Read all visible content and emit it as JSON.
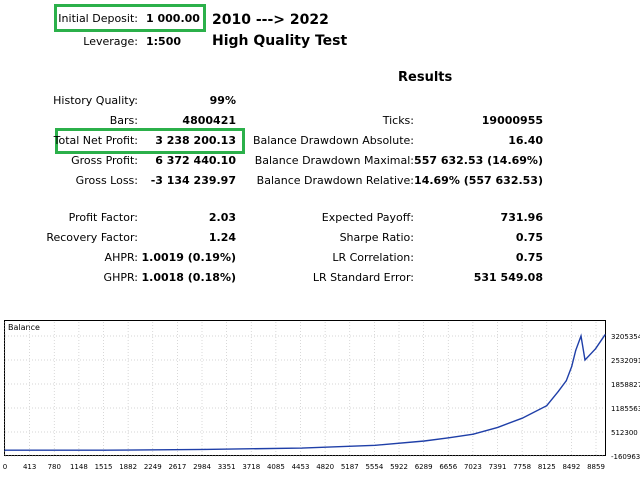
{
  "header": {
    "initial_deposit_label": "Initial Deposit:",
    "initial_deposit_value": "1 000.00",
    "leverage_label": "Leverage:",
    "leverage_value": "1:500",
    "period": "2010 ---> 2022",
    "subtitle": "High Quality Test"
  },
  "results_title": "Results",
  "left_stats": [
    {
      "label": "History Quality:",
      "value": "99%"
    },
    {
      "label": "Bars:",
      "value": "4800421"
    },
    {
      "label": "Total Net Profit:",
      "value": "3 238 200.13"
    },
    {
      "label": "Gross Profit:",
      "value": "6 372 440.10"
    },
    {
      "label": "Gross Loss:",
      "value": "-3 134 239.97"
    },
    {
      "label": "Profit Factor:",
      "value": "2.03"
    },
    {
      "label": "Recovery Factor:",
      "value": "1.24"
    },
    {
      "label": "AHPR:",
      "value": "1.0019 (0.19%)"
    },
    {
      "label": "GHPR:",
      "value": "1.0018 (0.18%)"
    }
  ],
  "right_stats": [
    {
      "label": "Ticks:",
      "value": "19000955"
    },
    {
      "label": "Balance Drawdown Absolute:",
      "value": "16.40"
    },
    {
      "label": "Balance Drawdown Maximal:",
      "value": "557 632.53 (14.69%)"
    },
    {
      "label": "Balance Drawdown Relative:",
      "value": "14.69% (557 632.53)"
    },
    {
      "label": "Expected Payoff:",
      "value": "731.96"
    },
    {
      "label": "Sharpe Ratio:",
      "value": "0.75"
    },
    {
      "label": "LR Correlation:",
      "value": "0.75"
    },
    {
      "label": "LR Standard Error:",
      "value": "531 549.08"
    }
  ],
  "colors": {
    "highlight": "#2bb04a",
    "balance_line": "#1f3fa8",
    "grid": "#c8c8c8"
  },
  "chart_data": {
    "type": "line",
    "title": "Balance",
    "series": [
      {
        "name": "Balance",
        "x": [
          0,
          1500,
          3000,
          4453,
          5554,
          6289,
          6656,
          7023,
          7391,
          7758,
          8125,
          8300,
          8420,
          8500,
          8560,
          8640,
          8700,
          8859,
          9000
        ],
        "values": [
          1000,
          1000,
          25000,
          60000,
          140000,
          260000,
          350000,
          450000,
          640000,
          900000,
          1250000,
          1650000,
          1950000,
          2350000,
          2800000,
          3205354,
          2532091,
          2850000,
          3238200
        ]
      }
    ],
    "x_ticks": [
      "0",
      "413",
      "780",
      "1148",
      "1515",
      "1882",
      "2249",
      "2617",
      "2984",
      "3351",
      "3718",
      "4085",
      "4453",
      "4820",
      "5187",
      "5554",
      "5922",
      "6289",
      "6656",
      "7023",
      "7391",
      "7758",
      "8125",
      "8492",
      "8859"
    ],
    "y_ticks": [
      "3205354",
      "2532091",
      "1858827",
      "1185563",
      "512300",
      "-160963"
    ],
    "xlim": [
      0,
      9000
    ],
    "ylim": [
      -160963,
      3205354
    ],
    "grid": true
  }
}
